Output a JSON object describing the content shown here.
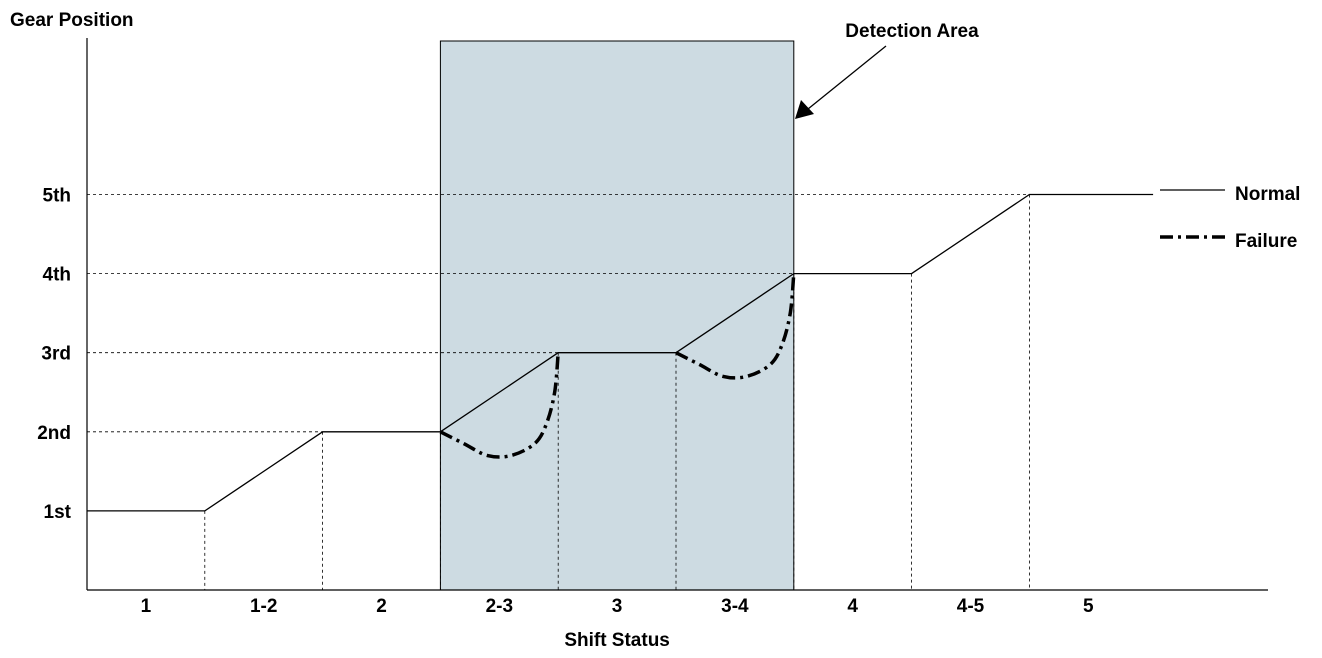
{
  "chart_data": {
    "type": "line",
    "ylabel": "Gear Position",
    "xlabel": "Shift Status",
    "categories": [
      "1",
      "1-2",
      "2",
      "2-3",
      "3",
      "3-4",
      "4",
      "4-5",
      "5"
    ],
    "y_ticks": [
      "1st",
      "2nd",
      "3rd",
      "4th",
      "5th"
    ],
    "series": [
      {
        "name": "Normal",
        "style": "solid",
        "x": [
          0,
          1,
          2,
          3,
          4,
          5,
          6,
          7,
          8,
          9.05
        ],
        "y": [
          1,
          1,
          2,
          2,
          3,
          3,
          4,
          4,
          5,
          5
        ]
      },
      {
        "name": "Failure",
        "style": "dash-dot",
        "segments": [
          {
            "x": [
              3,
              3.2,
              3.4,
              3.6,
              3.8,
              3.9,
              3.97,
              4
            ],
            "y": [
              2,
              1.85,
              1.7,
              1.7,
              1.85,
              2.1,
              2.5,
              3
            ]
          },
          {
            "x": [
              5,
              5.2,
              5.4,
              5.6,
              5.8,
              5.9,
              5.97,
              6
            ],
            "y": [
              3,
              2.85,
              2.7,
              2.7,
              2.85,
              3.1,
              3.5,
              4
            ]
          }
        ]
      }
    ],
    "highlight": {
      "label": "Detection Area",
      "x_start": 3,
      "x_end": 6,
      "color": "#cddbe2"
    },
    "grid": "dashed guides at gear levels and shift boundaries",
    "legend_position": "right"
  }
}
